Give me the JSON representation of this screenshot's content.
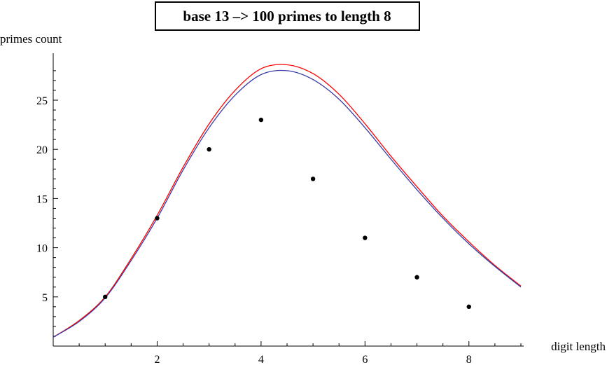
{
  "chart_data": {
    "type": "line",
    "title": "base 13  –>  100 primes to length 8",
    "xlabel": "digit length",
    "ylabel": "primes count",
    "xlim": [
      0,
      9
    ],
    "ylim": [
      0,
      29
    ],
    "x_ticks": [
      2,
      4,
      6,
      8
    ],
    "x_tick_labels": [
      "2",
      "4",
      "6",
      "8"
    ],
    "x_minor_ticks": [
      0.5,
      1,
      1.5,
      2.5,
      3,
      3.5,
      4.5,
      5,
      5.5,
      6.5,
      7,
      7.5,
      8.5,
      9
    ],
    "y_ticks": [
      5,
      10,
      15,
      20,
      25
    ],
    "y_tick_labels": [
      "5",
      "10",
      "15",
      "20",
      "25"
    ],
    "y_minor_ticks": [
      1,
      2,
      3,
      4,
      6,
      7,
      8,
      9,
      11,
      12,
      13,
      14,
      16,
      17,
      18,
      19,
      21,
      22,
      23,
      24,
      26,
      27,
      28
    ],
    "grid": false,
    "series": [
      {
        "kind": "line",
        "color": "#ff0000",
        "x": [
          0,
          0.5,
          1,
          1.5,
          2,
          2.5,
          3,
          3.5,
          4,
          4.5,
          5,
          5.5,
          6,
          6.5,
          7,
          7.5,
          8,
          8.5,
          9
        ],
        "y": [
          0.9,
          2.6,
          5.0,
          8.9,
          13.3,
          18.2,
          22.6,
          26.0,
          28.2,
          28.6,
          27.7,
          25.6,
          22.6,
          19.3,
          16.2,
          13.2,
          10.6,
          8.2,
          6.1
        ]
      },
      {
        "kind": "line",
        "color": "#3a3aa6",
        "x": [
          0,
          0.5,
          1,
          1.5,
          2,
          2.5,
          3,
          3.5,
          4,
          4.5,
          5,
          5.5,
          6,
          6.5,
          7,
          7.5,
          8,
          8.5,
          9
        ],
        "y": [
          0.9,
          2.5,
          4.9,
          8.7,
          13.0,
          17.9,
          22.2,
          25.5,
          27.6,
          28.0,
          27.1,
          25.1,
          22.2,
          19.0,
          15.9,
          13.0,
          10.4,
          8.1,
          6.0
        ]
      },
      {
        "kind": "scatter",
        "color": "#000000",
        "x": [
          1,
          2,
          3,
          4,
          5,
          6,
          7,
          8
        ],
        "y": [
          5,
          13,
          20,
          23,
          17,
          11,
          7,
          4
        ]
      }
    ]
  }
}
